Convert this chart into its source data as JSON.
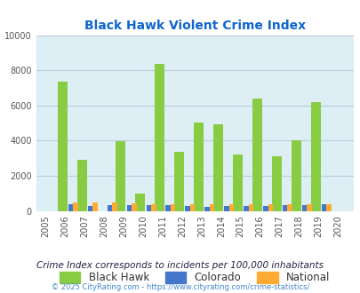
{
  "title": "Black Hawk Violent Crime Index",
  "years": [
    2005,
    2006,
    2007,
    2008,
    2009,
    2010,
    2011,
    2012,
    2013,
    2014,
    2015,
    2016,
    2017,
    2018,
    2019,
    2020
  ],
  "black_hawk": [
    0,
    7350,
    2900,
    0,
    3950,
    1000,
    8350,
    3350,
    5050,
    4950,
    3200,
    6380,
    3100,
    4000,
    6200,
    0
  ],
  "colorado": [
    0,
    370,
    280,
    310,
    310,
    350,
    320,
    270,
    230,
    280,
    290,
    280,
    310,
    350,
    360,
    0
  ],
  "national": [
    0,
    470,
    460,
    460,
    430,
    400,
    390,
    390,
    370,
    370,
    370,
    380,
    380,
    390,
    380,
    0
  ],
  "color_bh": "#88cc44",
  "color_co": "#4477cc",
  "color_na": "#ffaa33",
  "bg_color": "#ddeef5",
  "grid_color": "#bbccdd",
  "ylim": [
    0,
    10000
  ],
  "yticks": [
    0,
    2000,
    4000,
    6000,
    8000,
    10000
  ],
  "subtitle": "Crime Index corresponds to incidents per 100,000 inhabitants",
  "footer": "© 2025 CityRating.com - https://www.cityrating.com/crime-statistics/",
  "title_color": "#1166cc",
  "subtitle_color": "#222244",
  "footer_color": "#4488cc"
}
